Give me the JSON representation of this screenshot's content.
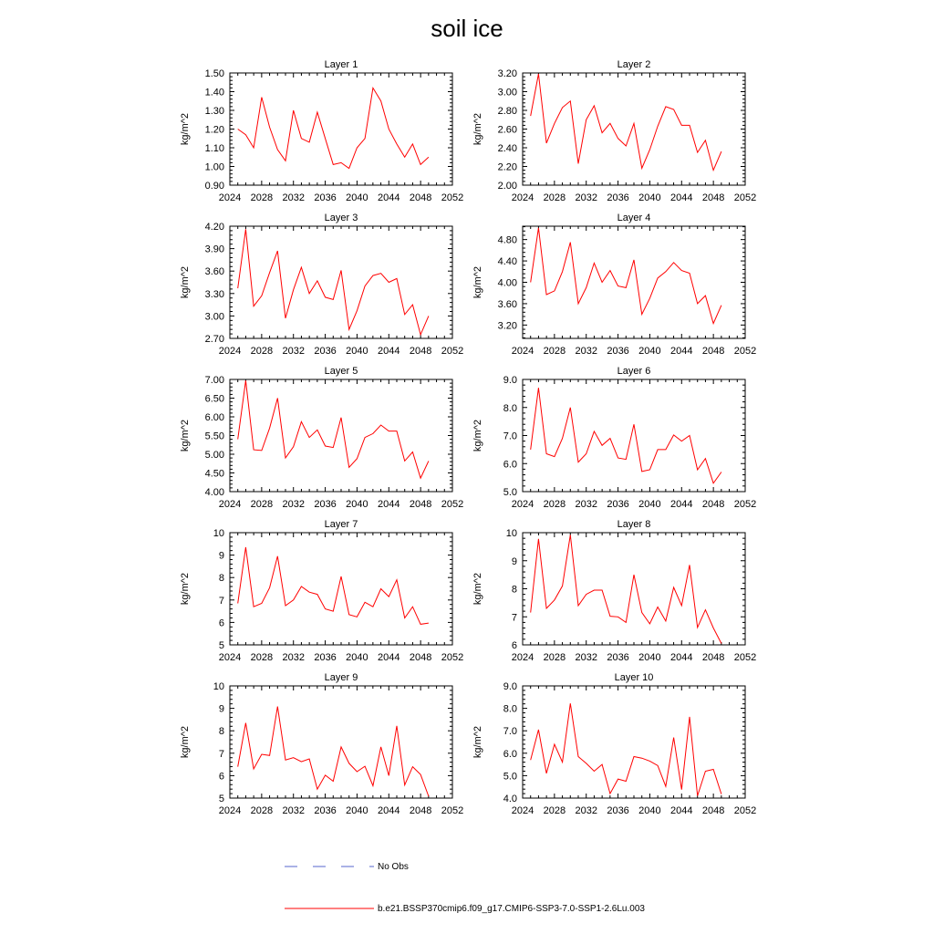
{
  "page": {
    "title": "soil ice"
  },
  "legend": {
    "obs_label": "No Obs",
    "obs_color": "#5566cc",
    "model_label": "b.e21.BSSP370cmip6.f09_g17.CMIP6-SSP3-7.0-SSP1-2.6Lu.003",
    "model_color": "#ff0000"
  },
  "chart_data": [
    {
      "type": "line",
      "title": "Layer 1",
      "ylabel": "kg/m^2",
      "xlim": [
        2024,
        2052
      ],
      "xticks": [
        2024,
        2028,
        2032,
        2036,
        2040,
        2044,
        2048,
        2052
      ],
      "ylim": [
        0.9,
        1.5
      ],
      "yticks": [
        "0.90",
        "1.00",
        "1.10",
        "1.20",
        "1.30",
        "1.40",
        "1.50"
      ],
      "x": [
        2025,
        2026,
        2027,
        2028,
        2029,
        2030,
        2031,
        2032,
        2033,
        2034,
        2035,
        2036,
        2037,
        2038,
        2039,
        2040,
        2041,
        2042,
        2043,
        2044,
        2045,
        2046,
        2047,
        2048,
        2049
      ],
      "series": [
        {
          "values": [
            1.2,
            1.17,
            1.1,
            1.37,
            1.21,
            1.09,
            1.03,
            1.3,
            1.15,
            1.13,
            1.29,
            1.15,
            1.01,
            1.02,
            0.99,
            1.1,
            1.15,
            1.42,
            1.35,
            1.2,
            1.12,
            1.05,
            1.12,
            1.01,
            1.05
          ]
        }
      ]
    },
    {
      "type": "line",
      "title": "Layer 2",
      "ylabel": "kg/m^2",
      "xlim": [
        2024,
        2052
      ],
      "xticks": [
        2024,
        2028,
        2032,
        2036,
        2040,
        2044,
        2048,
        2052
      ],
      "ylim": [
        2.0,
        3.2
      ],
      "yticks": [
        "2.00",
        "2.20",
        "2.40",
        "2.60",
        "2.80",
        "3.00",
        "3.20"
      ],
      "x": [
        2025,
        2026,
        2027,
        2028,
        2029,
        2030,
        2031,
        2032,
        2033,
        2034,
        2035,
        2036,
        2037,
        2038,
        2039,
        2040,
        2041,
        2042,
        2043,
        2044,
        2045,
        2046,
        2047,
        2048,
        2049
      ],
      "series": [
        {
          "values": [
            2.74,
            3.19,
            2.45,
            2.66,
            2.83,
            2.9,
            2.23,
            2.7,
            2.85,
            2.56,
            2.66,
            2.5,
            2.42,
            2.66,
            2.18,
            2.38,
            2.63,
            2.84,
            2.81,
            2.64,
            2.64,
            2.35,
            2.48,
            2.16,
            2.36
          ]
        }
      ]
    },
    {
      "type": "line",
      "title": "Layer 3",
      "ylabel": "kg/m^2",
      "xlim": [
        2024,
        2052
      ],
      "xticks": [
        2024,
        2028,
        2032,
        2036,
        2040,
        2044,
        2048,
        2052
      ],
      "ylim": [
        2.7,
        4.2
      ],
      "yticks": [
        "2.70",
        "3.00",
        "3.30",
        "3.60",
        "3.90",
        "4.20"
      ],
      "x": [
        2025,
        2026,
        2027,
        2028,
        2029,
        2030,
        2031,
        2032,
        2033,
        2034,
        2035,
        2036,
        2037,
        2038,
        2039,
        2040,
        2041,
        2042,
        2043,
        2044,
        2045,
        2046,
        2047,
        2048,
        2049
      ],
      "series": [
        {
          "values": [
            3.37,
            4.16,
            3.13,
            3.27,
            3.58,
            3.87,
            2.97,
            3.35,
            3.65,
            3.3,
            3.47,
            3.25,
            3.22,
            3.61,
            2.82,
            3.07,
            3.4,
            3.54,
            3.57,
            3.45,
            3.5,
            3.02,
            3.15,
            2.75,
            3.0
          ]
        }
      ]
    },
    {
      "type": "line",
      "title": "Layer 4",
      "ylabel": "kg/m^2",
      "xlim": [
        2024,
        2052
      ],
      "xticks": [
        2024,
        2028,
        2032,
        2036,
        2040,
        2044,
        2048,
        2052
      ],
      "ylim": [
        2.95,
        5.05
      ],
      "yticks": [
        "3.20",
        "3.60",
        "4.00",
        "4.40",
        "4.80"
      ],
      "x": [
        2025,
        2026,
        2027,
        2028,
        2029,
        2030,
        2031,
        2032,
        2033,
        2034,
        2035,
        2036,
        2037,
        2038,
        2039,
        2040,
        2041,
        2042,
        2043,
        2044,
        2045,
        2046,
        2047,
        2048,
        2049
      ],
      "series": [
        {
          "values": [
            4.0,
            5.02,
            3.77,
            3.84,
            4.2,
            4.75,
            3.6,
            3.9,
            4.36,
            4.0,
            4.22,
            3.93,
            3.9,
            4.42,
            3.4,
            3.7,
            4.08,
            4.2,
            4.37,
            4.22,
            4.17,
            3.6,
            3.75,
            3.23,
            3.57
          ]
        }
      ]
    },
    {
      "type": "line",
      "title": "Layer 5",
      "ylabel": "kg/m^2",
      "xlim": [
        2024,
        2052
      ],
      "xticks": [
        2024,
        2028,
        2032,
        2036,
        2040,
        2044,
        2048,
        2052
      ],
      "ylim": [
        4.0,
        7.0
      ],
      "yticks": [
        "4.00",
        "4.50",
        "5.00",
        "5.50",
        "6.00",
        "6.50",
        "7.00"
      ],
      "x": [
        2025,
        2026,
        2027,
        2028,
        2029,
        2030,
        2031,
        2032,
        2033,
        2034,
        2035,
        2036,
        2037,
        2038,
        2039,
        2040,
        2041,
        2042,
        2043,
        2044,
        2045,
        2046,
        2047,
        2048,
        2049
      ],
      "series": [
        {
          "values": [
            5.4,
            6.97,
            5.12,
            5.1,
            5.7,
            6.5,
            4.9,
            5.2,
            5.87,
            5.45,
            5.65,
            5.22,
            5.18,
            5.98,
            4.65,
            4.88,
            5.45,
            5.55,
            5.78,
            5.62,
            5.62,
            4.82,
            5.06,
            4.36,
            4.82
          ]
        }
      ]
    },
    {
      "type": "line",
      "title": "Layer 6",
      "ylabel": "kg/m^2",
      "xlim": [
        2024,
        2052
      ],
      "xticks": [
        2024,
        2028,
        2032,
        2036,
        2040,
        2044,
        2048,
        2052
      ],
      "ylim": [
        5.0,
        9.0
      ],
      "yticks": [
        "5.0",
        "6.0",
        "7.0",
        "8.0",
        "9.0"
      ],
      "x": [
        2025,
        2026,
        2027,
        2028,
        2029,
        2030,
        2031,
        2032,
        2033,
        2034,
        2035,
        2036,
        2037,
        2038,
        2039,
        2040,
        2041,
        2042,
        2043,
        2044,
        2045,
        2046,
        2047,
        2048,
        2049
      ],
      "series": [
        {
          "values": [
            6.5,
            8.7,
            6.35,
            6.25,
            6.9,
            8.0,
            6.05,
            6.35,
            7.15,
            6.65,
            6.9,
            6.2,
            6.15,
            7.4,
            5.72,
            5.78,
            6.5,
            6.5,
            7.02,
            6.8,
            7.0,
            5.78,
            6.18,
            5.3,
            5.7
          ]
        }
      ]
    },
    {
      "type": "line",
      "title": "Layer 7",
      "ylabel": "kg/m^2",
      "xlim": [
        2024,
        2052
      ],
      "xticks": [
        2024,
        2028,
        2032,
        2036,
        2040,
        2044,
        2048,
        2052
      ],
      "ylim": [
        5,
        10
      ],
      "yticks": [
        "5",
        "6",
        "7",
        "8",
        "9",
        "10"
      ],
      "x": [
        2025,
        2026,
        2027,
        2028,
        2029,
        2030,
        2031,
        2032,
        2033,
        2034,
        2035,
        2036,
        2037,
        2038,
        2039,
        2040,
        2041,
        2042,
        2043,
        2044,
        2045,
        2046,
        2047,
        2048,
        2049
      ],
      "series": [
        {
          "values": [
            6.85,
            9.35,
            6.7,
            6.85,
            7.55,
            8.95,
            6.75,
            7.0,
            7.6,
            7.35,
            7.25,
            6.6,
            6.5,
            8.05,
            6.35,
            6.25,
            6.9,
            6.7,
            7.5,
            7.15,
            7.9,
            6.2,
            6.7,
            5.92,
            5.97
          ]
        }
      ]
    },
    {
      "type": "line",
      "title": "Layer 8",
      "ylabel": "kg/m^2",
      "xlim": [
        2024,
        2052
      ],
      "xticks": [
        2024,
        2028,
        2032,
        2036,
        2040,
        2044,
        2048,
        2052
      ],
      "ylim": [
        6,
        10
      ],
      "yticks": [
        "6",
        "7",
        "8",
        "9",
        "10"
      ],
      "x": [
        2025,
        2026,
        2027,
        2028,
        2029,
        2030,
        2031,
        2032,
        2033,
        2034,
        2035,
        2036,
        2037,
        2038,
        2039,
        2040,
        2041,
        2042,
        2043,
        2044,
        2045,
        2046,
        2047,
        2048,
        2049
      ],
      "series": [
        {
          "values": [
            7.15,
            9.78,
            7.3,
            7.6,
            8.1,
            9.92,
            7.4,
            7.8,
            7.95,
            7.95,
            7.02,
            7.0,
            6.8,
            8.5,
            7.15,
            6.75,
            7.35,
            6.85,
            8.05,
            7.4,
            8.85,
            6.62,
            7.25,
            6.6,
            6.05
          ]
        }
      ]
    },
    {
      "type": "line",
      "title": "Layer 9",
      "ylabel": "kg/m^2",
      "xlim": [
        2024,
        2052
      ],
      "xticks": [
        2024,
        2028,
        2032,
        2036,
        2040,
        2044,
        2048,
        2052
      ],
      "ylim": [
        5,
        10
      ],
      "yticks": [
        "5",
        "6",
        "7",
        "8",
        "9",
        "10"
      ],
      "x": [
        2025,
        2026,
        2027,
        2028,
        2029,
        2030,
        2031,
        2032,
        2033,
        2034,
        2035,
        2036,
        2037,
        2038,
        2039,
        2040,
        2041,
        2042,
        2043,
        2044,
        2045,
        2046,
        2047,
        2048,
        2049
      ],
      "series": [
        {
          "values": [
            6.4,
            8.35,
            6.3,
            6.95,
            6.9,
            9.08,
            6.7,
            6.8,
            6.62,
            6.75,
            5.4,
            6.02,
            5.75,
            7.28,
            6.55,
            6.18,
            6.42,
            5.55,
            7.28,
            6.0,
            8.22,
            5.58,
            6.4,
            6.05,
            5.08
          ]
        }
      ]
    },
    {
      "type": "line",
      "title": "Layer 10",
      "ylabel": "kg/m^2",
      "xlim": [
        2024,
        2052
      ],
      "xticks": [
        2024,
        2028,
        2032,
        2036,
        2040,
        2044,
        2048,
        2052
      ],
      "ylim": [
        4.0,
        9.0
      ],
      "yticks": [
        "4.0",
        "5.0",
        "6.0",
        "7.0",
        "8.0",
        "9.0"
      ],
      "x": [
        2025,
        2026,
        2027,
        2028,
        2029,
        2030,
        2031,
        2032,
        2033,
        2034,
        2035,
        2036,
        2037,
        2038,
        2039,
        2040,
        2041,
        2042,
        2043,
        2044,
        2045,
        2046,
        2047,
        2048,
        2049
      ],
      "series": [
        {
          "values": [
            5.7,
            7.05,
            5.1,
            6.4,
            5.6,
            8.22,
            5.85,
            5.55,
            5.2,
            5.5,
            4.2,
            4.85,
            4.75,
            5.85,
            5.78,
            5.65,
            5.45,
            4.52,
            6.7,
            4.38,
            7.62,
            4.1,
            5.2,
            5.28,
            4.18
          ]
        }
      ]
    }
  ]
}
